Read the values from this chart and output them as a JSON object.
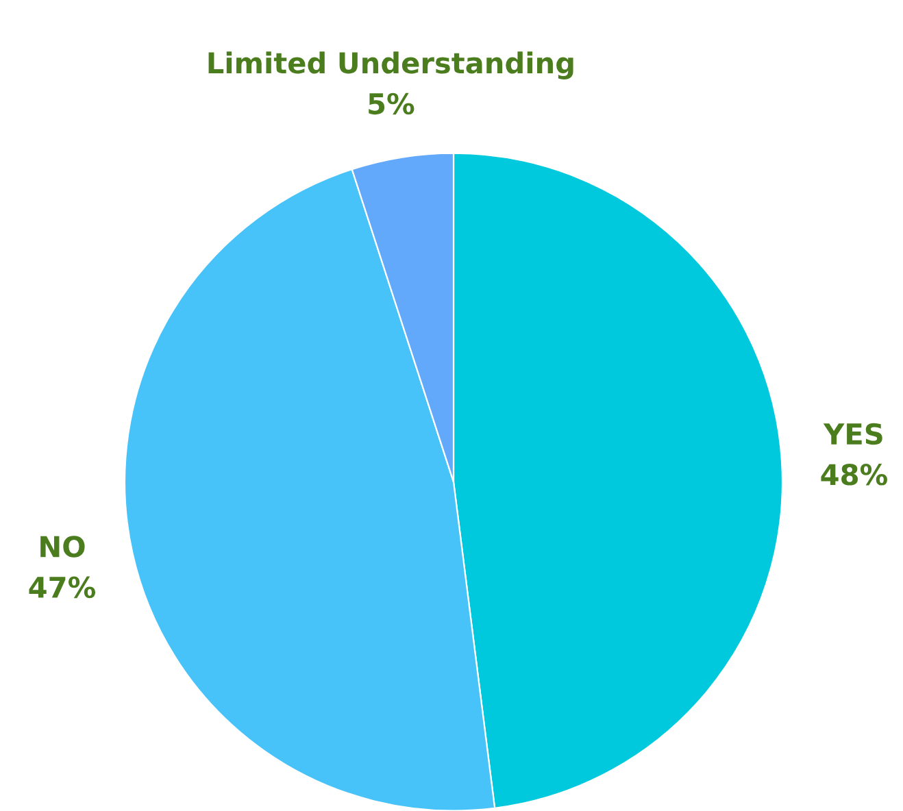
{
  "chart_data": {
    "type": "pie",
    "categories": [
      "YES",
      "NO",
      "Limited Understanding"
    ],
    "values": [
      48,
      47,
      5
    ],
    "value_labels": [
      "48%",
      "47%",
      "5%"
    ],
    "colors": [
      "#00c9dd",
      "#48c3fa",
      "#63a9fb"
    ]
  }
}
